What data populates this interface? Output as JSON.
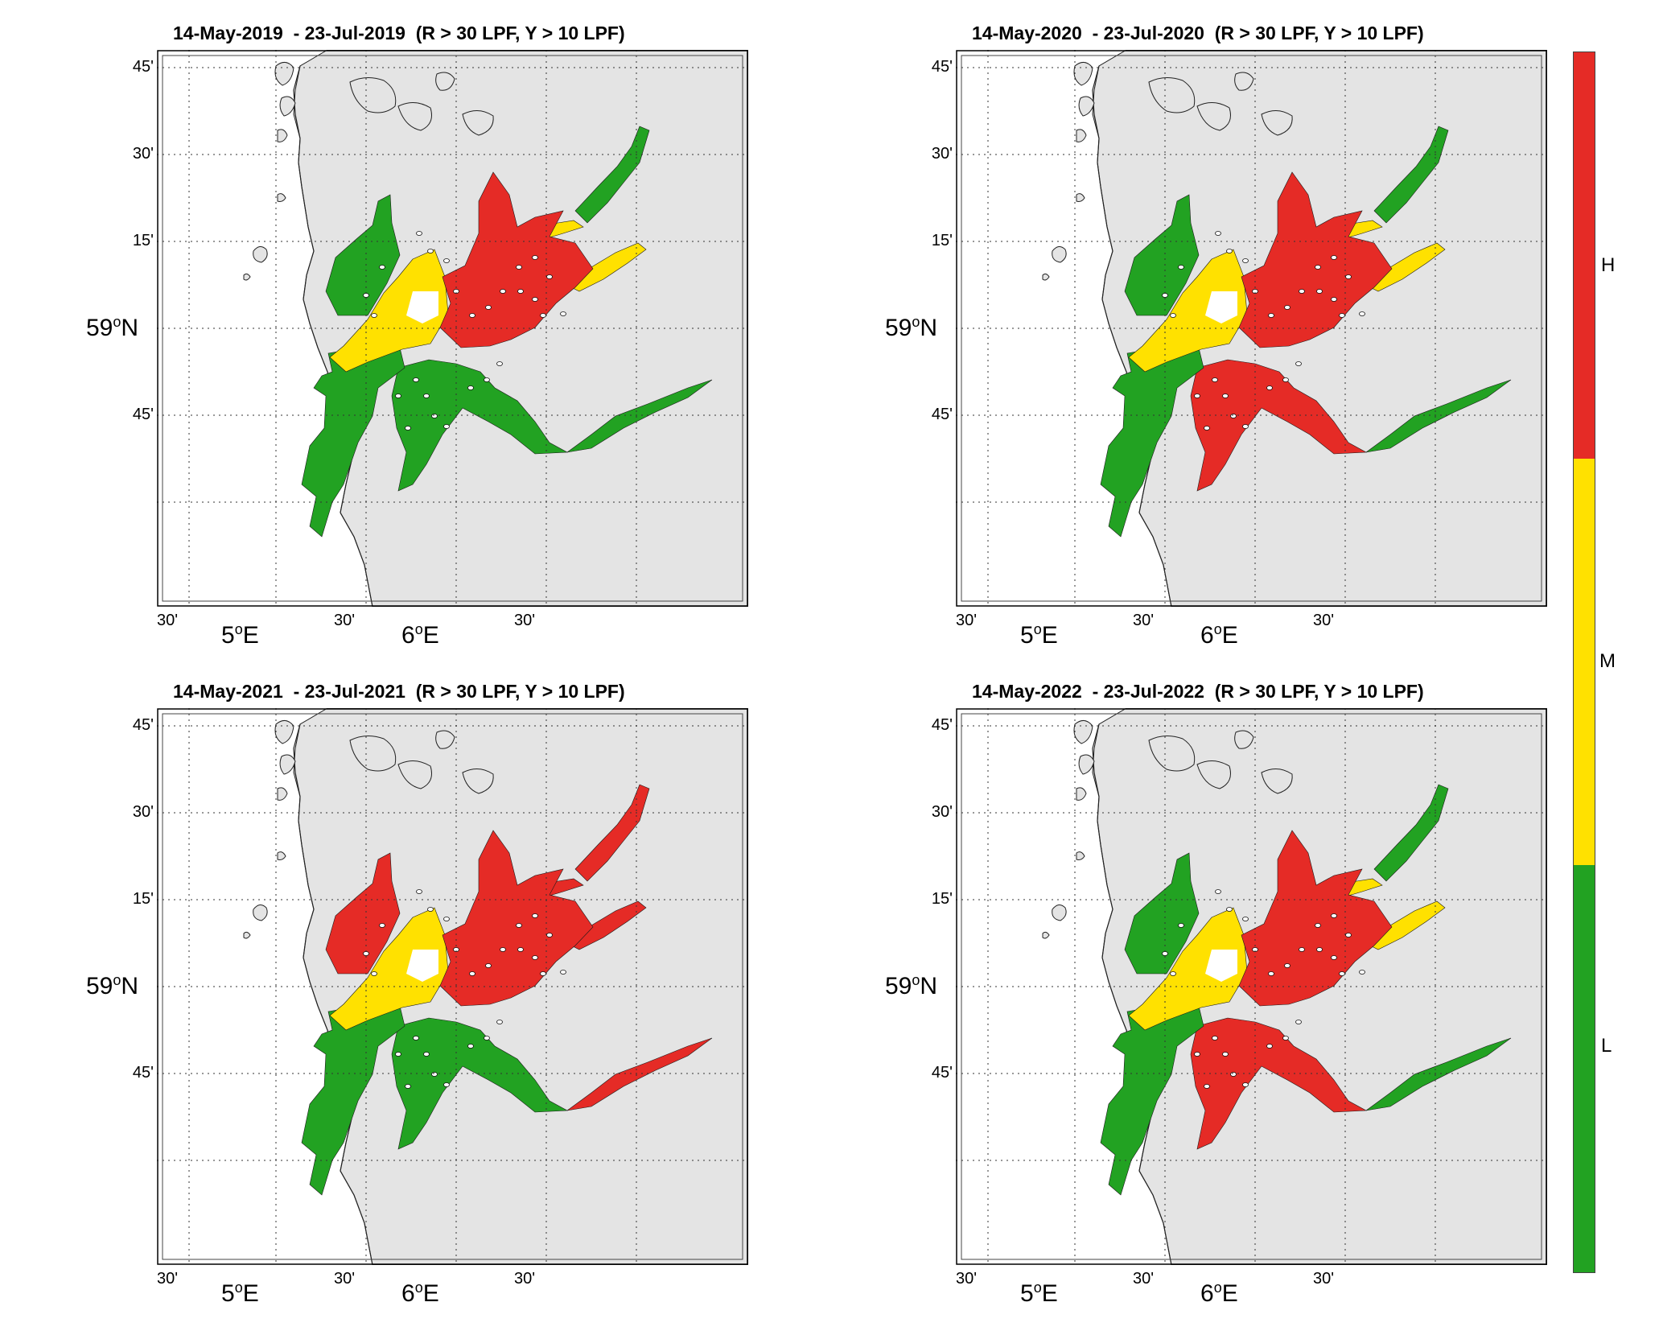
{
  "colors": {
    "high": "#e52b26",
    "medium": "#ffe100",
    "low": "#22a222",
    "land": "#e4e4e4",
    "water": "#ffffff"
  },
  "panels": [
    {
      "title": "14-May-2019  - 23-Jul-2019  (R > 30 LPF, Y > 10 LPF)",
      "lat_labels": [
        "45'",
        "30'",
        "15'",
        "45'"
      ],
      "lat_main": "59",
      "lat_main_unit": "N",
      "lon_labels": [
        "30'",
        "30'",
        "30'"
      ],
      "lon_main": [
        "5",
        "6"
      ],
      "lon_main_unit": "E",
      "zone_levels": {
        "outer_sw": "L",
        "inner_west": "M",
        "central": "H",
        "south_fjords": "L",
        "north_fjords": "L",
        "east_arm": "M"
      }
    },
    {
      "title": "14-May-2020  - 23-Jul-2020  (R > 30 LPF, Y > 10 LPF)",
      "lat_labels": [
        "45'",
        "30'",
        "15'",
        "45'"
      ],
      "lat_main": "59",
      "lat_main_unit": "N",
      "lon_labels": [
        "30'",
        "30'",
        "30'"
      ],
      "lon_main": [
        "5",
        "6"
      ],
      "lon_main_unit": "E",
      "zone_levels": {
        "outer_sw": "L",
        "inner_west": "M",
        "central": "H",
        "south_fjords": "H",
        "north_fjords": "L",
        "east_arm": "M"
      }
    },
    {
      "title": "14-May-2021  - 23-Jul-2021  (R > 30 LPF, Y > 10 LPF)",
      "lat_labels": [
        "45'",
        "30'",
        "15'",
        "45'"
      ],
      "lat_main": "59",
      "lat_main_unit": "N",
      "lon_labels": [
        "30'",
        "30'",
        "30'"
      ],
      "lon_main": [
        "5",
        "6"
      ],
      "lon_main_unit": "E",
      "zone_levels": {
        "outer_sw": "L",
        "inner_west": "M",
        "central": "H",
        "south_fjords": "L",
        "north_fjords": "H",
        "east_arm": "H"
      }
    },
    {
      "title": "14-May-2022  - 23-Jul-2022  (R > 30 LPF, Y > 10 LPF)",
      "lat_labels": [
        "45'",
        "30'",
        "15'",
        "45'"
      ],
      "lat_main": "59",
      "lat_main_unit": "N",
      "lon_labels": [
        "30'",
        "30'",
        "30'"
      ],
      "lon_main": [
        "5",
        "6"
      ],
      "lon_main_unit": "E",
      "zone_levels": {
        "outer_sw": "L",
        "inner_west": "M",
        "central": "H",
        "south_fjords": "H",
        "north_fjords": "L",
        "east_arm": "M"
      }
    }
  ],
  "colorbar": {
    "labels": [
      "H",
      "M",
      "L"
    ]
  }
}
